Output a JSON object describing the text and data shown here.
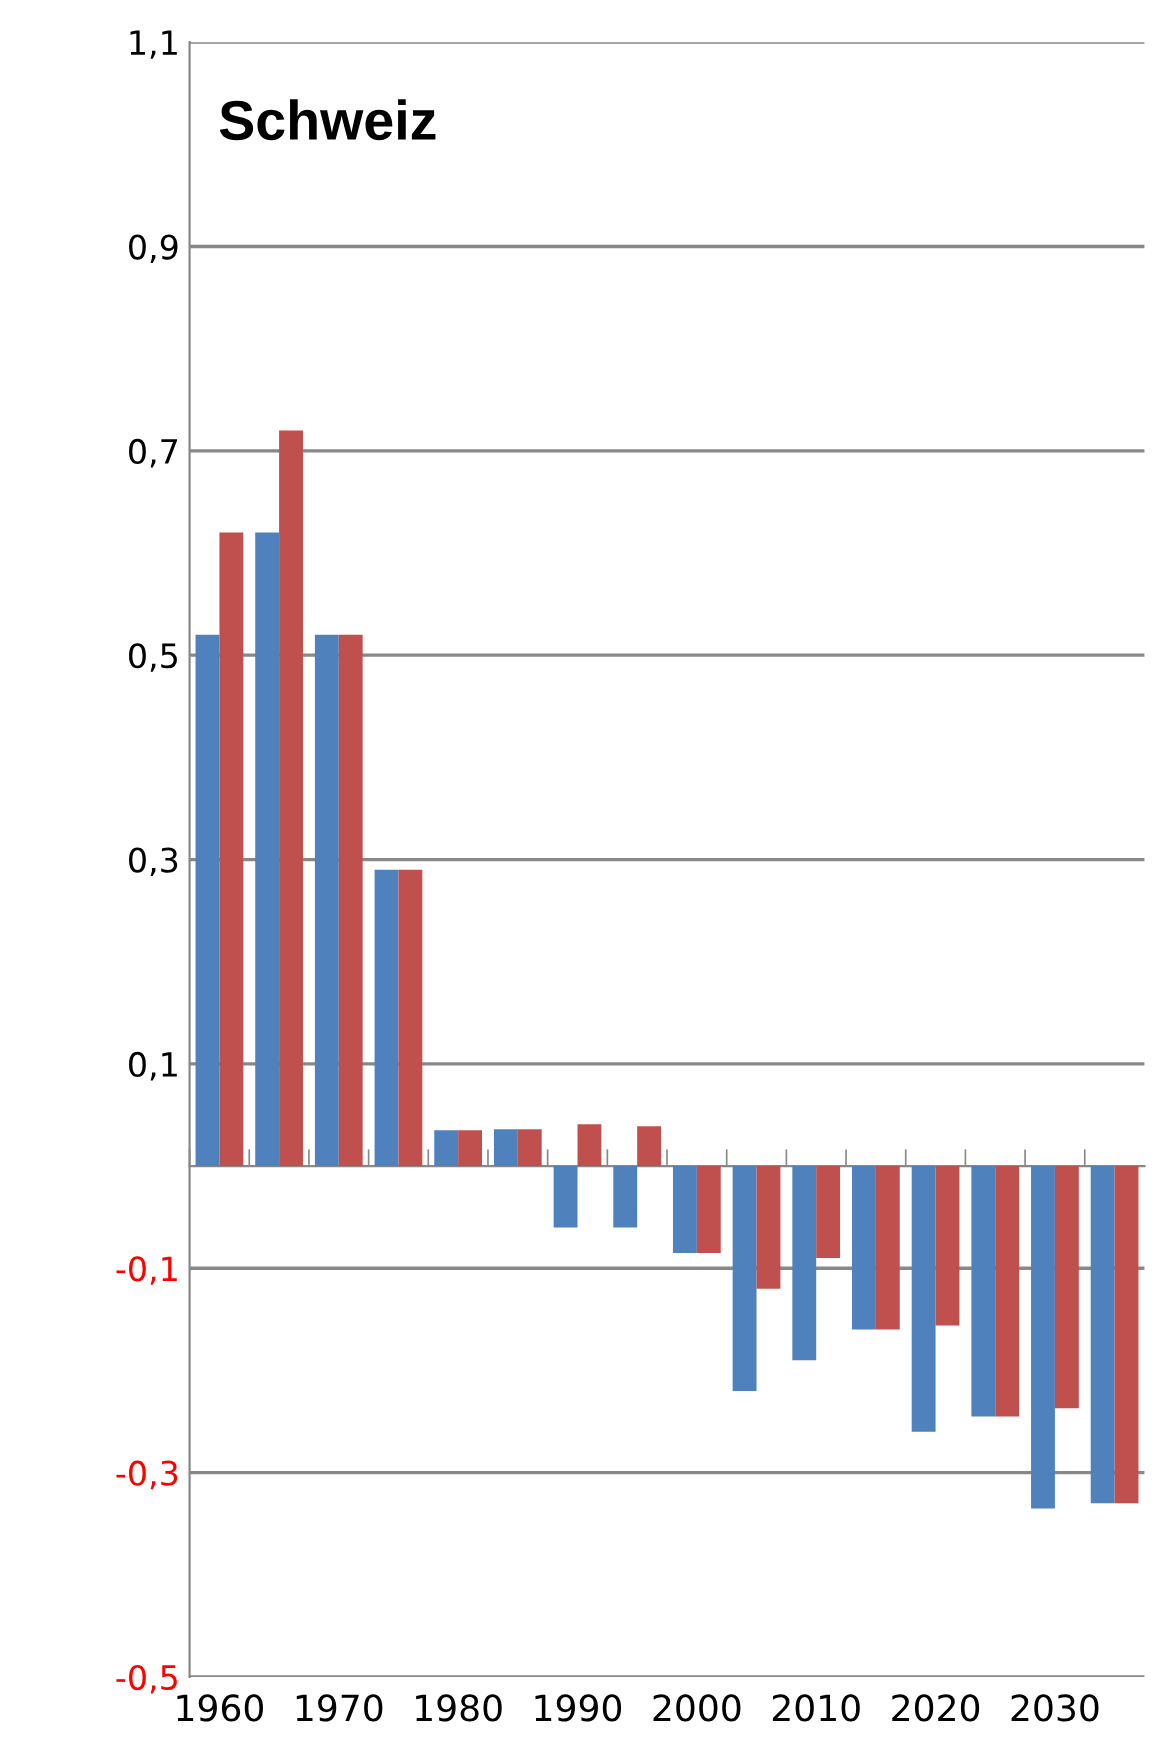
{
  "chart_data": {
    "type": "bar",
    "title": "Schweiz",
    "categories": [
      "1960",
      null,
      "1970",
      null,
      "1980",
      null,
      "1990",
      null,
      "2000",
      null,
      "2010",
      null,
      "2020",
      null,
      "2030",
      null
    ],
    "series": [
      {
        "color": "#4f81bd",
        "values": [
          0.52,
          0.62,
          0.52,
          0.29,
          0.035,
          0.036,
          -0.06,
          -0.06,
          -0.085,
          -0.22,
          -0.19,
          -0.16,
          -0.26,
          -0.245,
          -0.335,
          -0.33
        ]
      },
      {
        "color": "#c0504d",
        "values": [
          0.62,
          0.72,
          0.52,
          0.29,
          0.035,
          0.036,
          0.041,
          0.039,
          -0.085,
          -0.12,
          -0.09,
          -0.16,
          -0.156,
          -0.245,
          -0.237,
          -0.33
        ]
      }
    ],
    "ylim": [
      -0.5,
      1.1
    ],
    "yticks": [
      {
        "value": -0.5,
        "label": "-0,5"
      },
      {
        "value": -0.3,
        "label": "-0,3"
      },
      {
        "value": -0.1,
        "label": "-0,1"
      },
      {
        "value": 0.1,
        "label": "0,1"
      },
      {
        "value": 0.3,
        "label": "0,3"
      },
      {
        "value": 0.5,
        "label": "0,5"
      },
      {
        "value": 0.7,
        "label": "0,7"
      },
      {
        "value": 0.9,
        "label": "0,9"
      },
      {
        "value": 1.1,
        "label": "1,1"
      }
    ],
    "grid": "y",
    "legend": false
  }
}
